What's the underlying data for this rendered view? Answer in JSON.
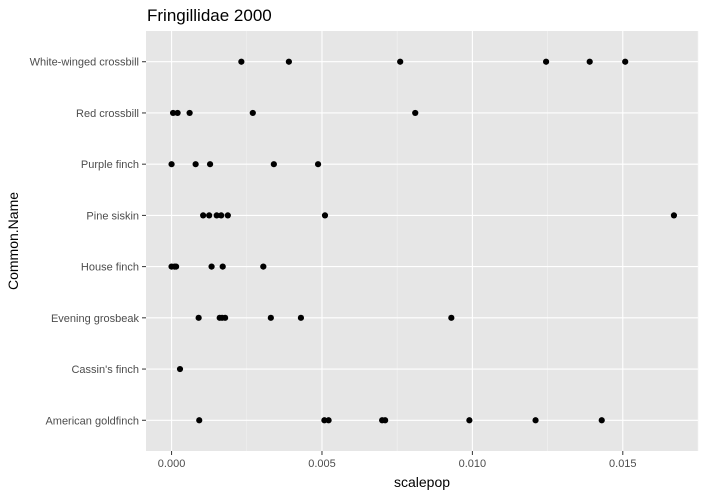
{
  "chart_data": {
    "type": "scatter",
    "title": "Fringillidae 2000",
    "xlabel": "scalepop",
    "ylabel": "Common.Name",
    "xlim": [
      -0.00085,
      0.0175
    ],
    "x_ticks": [
      0.0,
      0.005,
      0.01,
      0.015
    ],
    "x_tick_labels": [
      "0.000",
      "0.005",
      "0.010",
      "0.015"
    ],
    "categories": [
      "American goldfinch",
      "Cassin's finch",
      "Evening grosbeak",
      "House finch",
      "Pine siskin",
      "Purple finch",
      "Red crossbill",
      "White-winged crossbill"
    ],
    "grid": true,
    "points": [
      {
        "category": "White-winged crossbill",
        "x": [
          0.00232,
          0.0039,
          0.0076,
          0.01245,
          0.0139,
          0.01508
        ]
      },
      {
        "category": "Red crossbill",
        "x": [
          5e-05,
          0.0002,
          0.0006,
          0.0027,
          0.0081
        ]
      },
      {
        "category": "Purple finch",
        "x": [
          0.0,
          0.0008,
          0.00128,
          0.0034,
          0.00487
        ]
      },
      {
        "category": "Pine siskin",
        "x": [
          0.00105,
          0.00125,
          0.0015,
          0.00165,
          0.00187,
          0.0051,
          0.0167
        ]
      },
      {
        "category": "House finch",
        "x": [
          0.0,
          0.0001,
          0.00015,
          0.00133,
          0.0017,
          0.00305
        ]
      },
      {
        "category": "Evening grosbeak",
        "x": [
          0.0009,
          0.0016,
          0.00168,
          0.00178,
          0.0033,
          0.0043,
          0.0093
        ]
      },
      {
        "category": "Cassin's finch",
        "x": [
          0.00028
        ]
      },
      {
        "category": "American goldfinch",
        "x": [
          0.00092,
          0.00508,
          0.00522,
          0.007,
          0.0071,
          0.0099,
          0.0121,
          0.0143
        ]
      }
    ],
    "colors": {
      "panel": "#e6e6e6",
      "grid_major": "#ffffff",
      "grid_minor": "#f2f2f2",
      "point": "#000000"
    }
  }
}
